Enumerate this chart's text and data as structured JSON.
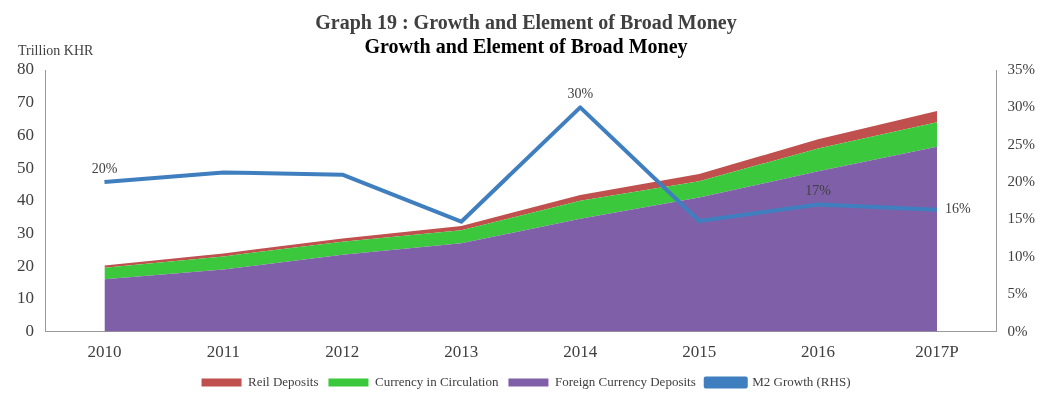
{
  "chart_data": {
    "type": "area",
    "title": "Graph 19 : Growth and Element of Broad Money",
    "subtitle": "Growth and Element of Broad Money",
    "ylabel": "Trillion KHR",
    "categories": [
      "2010",
      "2011",
      "2012",
      "2013",
      "2014",
      "2015",
      "2016",
      "2017P"
    ],
    "stacked": true,
    "series": [
      {
        "name": "Foreign Currency Deposits",
        "color": "#7f60a8",
        "values": [
          16,
          19,
          23.5,
          27,
          34.5,
          41,
          49,
          56.5
        ]
      },
      {
        "name": "Currency in Circulation",
        "color": "#3cc83c",
        "values": [
          3.5,
          4,
          4,
          4,
          5.5,
          5,
          7,
          7.5
        ]
      },
      {
        "name": "Reil Deposits",
        "color": "#c0504d",
        "values": [
          0.7,
          0.9,
          1,
          1.3,
          1.8,
          2.2,
          2.8,
          3.5
        ]
      },
      {
        "name": "M2 Growth (RHS)",
        "type": "line",
        "axis": "y2",
        "color": "#3f7fbf",
        "values": [
          20,
          21.3,
          21,
          14.7,
          30,
          14.8,
          17,
          16.3
        ],
        "value_labels": [
          "20%",
          null,
          null,
          null,
          "30%",
          null,
          "17%",
          "16%"
        ]
      }
    ],
    "ylim": [
      0,
      80
    ],
    "yticks": [
      0,
      10,
      20,
      30,
      40,
      50,
      60,
      70,
      80
    ],
    "y2lim": [
      0,
      35
    ],
    "y2ticks": [
      {
        "value": 0,
        "label": "0%"
      },
      {
        "value": 5,
        "label": "5%"
      },
      {
        "value": 10,
        "label": "10%"
      },
      {
        "value": 15,
        "label": "15%"
      },
      {
        "value": 20,
        "label": "20%"
      },
      {
        "value": 25,
        "label": "25%"
      },
      {
        "value": 30,
        "label": "30%"
      },
      {
        "value": 35,
        "label": "35%"
      }
    ],
    "grid": false,
    "legend": "bottom",
    "marker": "none"
  }
}
